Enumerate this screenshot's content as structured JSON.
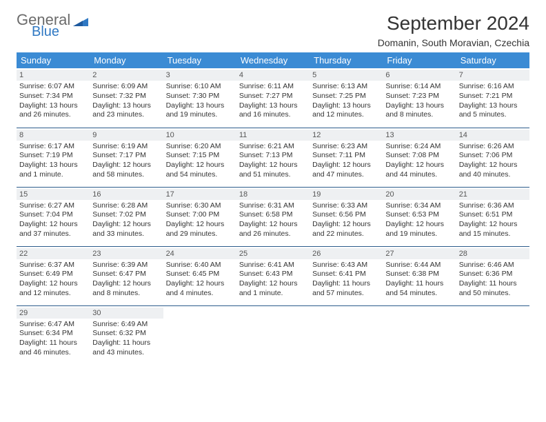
{
  "logo": {
    "line1": "General",
    "line2": "Blue"
  },
  "title": "September 2024",
  "subtitle": "Domanin, South Moravian, Czechia",
  "colors": {
    "header_bg": "#3b8bd4",
    "header_text": "#ffffff",
    "row_border": "#2a5a8a",
    "daynum_bg": "#eef0f2",
    "logo_gray": "#6b6b6b",
    "logo_blue": "#2f78c3"
  },
  "weekdays": [
    "Sunday",
    "Monday",
    "Tuesday",
    "Wednesday",
    "Thursday",
    "Friday",
    "Saturday"
  ],
  "weeks": [
    [
      {
        "n": "1",
        "l1": "Sunrise: 6:07 AM",
        "l2": "Sunset: 7:34 PM",
        "l3": "Daylight: 13 hours",
        "l4": "and 26 minutes."
      },
      {
        "n": "2",
        "l1": "Sunrise: 6:09 AM",
        "l2": "Sunset: 7:32 PM",
        "l3": "Daylight: 13 hours",
        "l4": "and 23 minutes."
      },
      {
        "n": "3",
        "l1": "Sunrise: 6:10 AM",
        "l2": "Sunset: 7:30 PM",
        "l3": "Daylight: 13 hours",
        "l4": "and 19 minutes."
      },
      {
        "n": "4",
        "l1": "Sunrise: 6:11 AM",
        "l2": "Sunset: 7:27 PM",
        "l3": "Daylight: 13 hours",
        "l4": "and 16 minutes."
      },
      {
        "n": "5",
        "l1": "Sunrise: 6:13 AM",
        "l2": "Sunset: 7:25 PM",
        "l3": "Daylight: 13 hours",
        "l4": "and 12 minutes."
      },
      {
        "n": "6",
        "l1": "Sunrise: 6:14 AM",
        "l2": "Sunset: 7:23 PM",
        "l3": "Daylight: 13 hours",
        "l4": "and 8 minutes."
      },
      {
        "n": "7",
        "l1": "Sunrise: 6:16 AM",
        "l2": "Sunset: 7:21 PM",
        "l3": "Daylight: 13 hours",
        "l4": "and 5 minutes."
      }
    ],
    [
      {
        "n": "8",
        "l1": "Sunrise: 6:17 AM",
        "l2": "Sunset: 7:19 PM",
        "l3": "Daylight: 13 hours",
        "l4": "and 1 minute."
      },
      {
        "n": "9",
        "l1": "Sunrise: 6:19 AM",
        "l2": "Sunset: 7:17 PM",
        "l3": "Daylight: 12 hours",
        "l4": "and 58 minutes."
      },
      {
        "n": "10",
        "l1": "Sunrise: 6:20 AM",
        "l2": "Sunset: 7:15 PM",
        "l3": "Daylight: 12 hours",
        "l4": "and 54 minutes."
      },
      {
        "n": "11",
        "l1": "Sunrise: 6:21 AM",
        "l2": "Sunset: 7:13 PM",
        "l3": "Daylight: 12 hours",
        "l4": "and 51 minutes."
      },
      {
        "n": "12",
        "l1": "Sunrise: 6:23 AM",
        "l2": "Sunset: 7:11 PM",
        "l3": "Daylight: 12 hours",
        "l4": "and 47 minutes."
      },
      {
        "n": "13",
        "l1": "Sunrise: 6:24 AM",
        "l2": "Sunset: 7:08 PM",
        "l3": "Daylight: 12 hours",
        "l4": "and 44 minutes."
      },
      {
        "n": "14",
        "l1": "Sunrise: 6:26 AM",
        "l2": "Sunset: 7:06 PM",
        "l3": "Daylight: 12 hours",
        "l4": "and 40 minutes."
      }
    ],
    [
      {
        "n": "15",
        "l1": "Sunrise: 6:27 AM",
        "l2": "Sunset: 7:04 PM",
        "l3": "Daylight: 12 hours",
        "l4": "and 37 minutes."
      },
      {
        "n": "16",
        "l1": "Sunrise: 6:28 AM",
        "l2": "Sunset: 7:02 PM",
        "l3": "Daylight: 12 hours",
        "l4": "and 33 minutes."
      },
      {
        "n": "17",
        "l1": "Sunrise: 6:30 AM",
        "l2": "Sunset: 7:00 PM",
        "l3": "Daylight: 12 hours",
        "l4": "and 29 minutes."
      },
      {
        "n": "18",
        "l1": "Sunrise: 6:31 AM",
        "l2": "Sunset: 6:58 PM",
        "l3": "Daylight: 12 hours",
        "l4": "and 26 minutes."
      },
      {
        "n": "19",
        "l1": "Sunrise: 6:33 AM",
        "l2": "Sunset: 6:56 PM",
        "l3": "Daylight: 12 hours",
        "l4": "and 22 minutes."
      },
      {
        "n": "20",
        "l1": "Sunrise: 6:34 AM",
        "l2": "Sunset: 6:53 PM",
        "l3": "Daylight: 12 hours",
        "l4": "and 19 minutes."
      },
      {
        "n": "21",
        "l1": "Sunrise: 6:36 AM",
        "l2": "Sunset: 6:51 PM",
        "l3": "Daylight: 12 hours",
        "l4": "and 15 minutes."
      }
    ],
    [
      {
        "n": "22",
        "l1": "Sunrise: 6:37 AM",
        "l2": "Sunset: 6:49 PM",
        "l3": "Daylight: 12 hours",
        "l4": "and 12 minutes."
      },
      {
        "n": "23",
        "l1": "Sunrise: 6:39 AM",
        "l2": "Sunset: 6:47 PM",
        "l3": "Daylight: 12 hours",
        "l4": "and 8 minutes."
      },
      {
        "n": "24",
        "l1": "Sunrise: 6:40 AM",
        "l2": "Sunset: 6:45 PM",
        "l3": "Daylight: 12 hours",
        "l4": "and 4 minutes."
      },
      {
        "n": "25",
        "l1": "Sunrise: 6:41 AM",
        "l2": "Sunset: 6:43 PM",
        "l3": "Daylight: 12 hours",
        "l4": "and 1 minute."
      },
      {
        "n": "26",
        "l1": "Sunrise: 6:43 AM",
        "l2": "Sunset: 6:41 PM",
        "l3": "Daylight: 11 hours",
        "l4": "and 57 minutes."
      },
      {
        "n": "27",
        "l1": "Sunrise: 6:44 AM",
        "l2": "Sunset: 6:38 PM",
        "l3": "Daylight: 11 hours",
        "l4": "and 54 minutes."
      },
      {
        "n": "28",
        "l1": "Sunrise: 6:46 AM",
        "l2": "Sunset: 6:36 PM",
        "l3": "Daylight: 11 hours",
        "l4": "and 50 minutes."
      }
    ],
    [
      {
        "n": "29",
        "l1": "Sunrise: 6:47 AM",
        "l2": "Sunset: 6:34 PM",
        "l3": "Daylight: 11 hours",
        "l4": "and 46 minutes."
      },
      {
        "n": "30",
        "l1": "Sunrise: 6:49 AM",
        "l2": "Sunset: 6:32 PM",
        "l3": "Daylight: 11 hours",
        "l4": "and 43 minutes."
      },
      null,
      null,
      null,
      null,
      null
    ]
  ]
}
